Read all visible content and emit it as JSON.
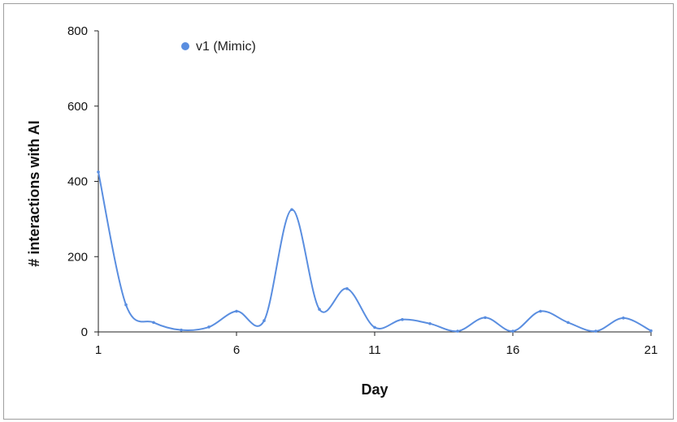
{
  "chart_data": {
    "type": "line",
    "title": "",
    "xlabel": "Day",
    "ylabel": "# interactions with AI",
    "x": [
      1,
      2,
      3,
      4,
      5,
      6,
      7,
      8,
      9,
      10,
      11,
      12,
      13,
      14,
      15,
      16,
      17,
      18,
      19,
      20,
      21
    ],
    "series": [
      {
        "name": "v1 (Mimic)",
        "color": "#5a8ee0",
        "values": [
          425,
          72,
          25,
          5,
          13,
          55,
          30,
          325,
          60,
          115,
          12,
          33,
          22,
          2,
          38,
          2,
          55,
          25,
          2,
          37,
          3
        ]
      }
    ],
    "xticks": [
      1,
      6,
      11,
      16,
      21
    ],
    "yticks": [
      0,
      200,
      400,
      600,
      800
    ],
    "xlim": [
      1,
      21
    ],
    "ylim": [
      0,
      800
    ],
    "grid": false,
    "smooth": true,
    "legend_position": "top-left"
  }
}
